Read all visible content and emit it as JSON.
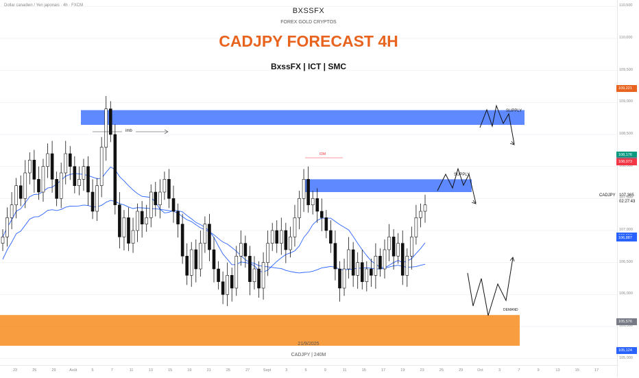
{
  "header": {
    "symbol_description": "Dollar canadien / Yen japonais · 4h · FXCM",
    "brand": "BXSSFX",
    "subtitle": "FOREX GOLD CRYPTOS",
    "title": "CADJPY FORECAST 4H",
    "tagline": "BxssFX | ICT | SMC"
  },
  "watermark": {
    "date": "21/9/2025",
    "symbol": "CADJPY | 240M"
  },
  "current": {
    "name": "CADJPY",
    "price": "107,365",
    "countdown": "02:27:43"
  },
  "colors": {
    "supply": "#2962ff",
    "demand": "#f57c00",
    "title": "#e8641e",
    "bull": "#111111",
    "ma": "#2962ff",
    "idm": "#f23645"
  },
  "chart_data": {
    "type": "candlestick",
    "ylim": [
      104.9,
      110.6
    ],
    "y_ticks": [
      "110,500",
      "110,000",
      "109,500",
      "109,000",
      "108,500",
      "108,000",
      "107,500",
      "107,000",
      "106,500",
      "106,000",
      "105,500",
      "105,000"
    ],
    "x_ticks": [
      "23",
      "25",
      "29",
      "Août",
      "5",
      "7",
      "11",
      "13",
      "15",
      "19",
      "21",
      "25",
      "27",
      "Sept",
      "3",
      "5",
      "9",
      "11",
      "15",
      "17",
      "19",
      "23",
      "25",
      "29",
      "Oct",
      "3",
      "7",
      "9",
      "13",
      "15",
      "17"
    ],
    "price_tags": [
      {
        "label": "109,221",
        "color": "#e8641e"
      },
      {
        "label": "108,176",
        "color": "#089981"
      },
      {
        "label": "108,090",
        "color": "#787b86"
      },
      {
        "label": "108,073",
        "color": "#f23645"
      },
      {
        "label": "106,913",
        "color": "#2962ff"
      },
      {
        "label": "106,887",
        "color": "#2962ff"
      },
      {
        "label": "105,576",
        "color": "#787b86"
      },
      {
        "label": "105,124",
        "color": "#2962ff"
      }
    ],
    "zones": [
      {
        "kind": "supply",
        "label": "SUPPLY",
        "from": 108.65,
        "to": 108.88
      },
      {
        "kind": "supply",
        "label": "SUPPLY",
        "from": 107.6,
        "to": 107.8
      },
      {
        "kind": "demand",
        "label": "DEMAND",
        "from": 105.2,
        "to": 105.68
      }
    ],
    "annotations": [
      "imb",
      "IDM"
    ],
    "closes": [
      106.9,
      107.2,
      107.4,
      107.7,
      107.5,
      107.9,
      108.1,
      107.8,
      107.6,
      108.0,
      108.2,
      107.8,
      107.5,
      107.9,
      108.2,
      108.0,
      107.7,
      107.8,
      108.0,
      107.6,
      107.3,
      107.7,
      108.3,
      108.9,
      108.5,
      107.4,
      106.9,
      107.2,
      106.8,
      107.0,
      107.3,
      107.1,
      107.2,
      107.6,
      107.4,
      107.6,
      107.8,
      107.5,
      107.3,
      107.1,
      106.6,
      106.3,
      106.7,
      106.4,
      106.8,
      107.1,
      106.7,
      106.4,
      106.2,
      106.0,
      106.3,
      106.1,
      106.6,
      106.8,
      106.6,
      106.2,
      106.4,
      106.1,
      106.5,
      106.8,
      107.0,
      106.8,
      107.0,
      106.7,
      106.9,
      107.2,
      107.5,
      107.8,
      107.4,
      107.5,
      107.3,
      107.2,
      107.0,
      106.8,
      106.4,
      106.1,
      106.4,
      106.7,
      106.3,
      106.5,
      106.2,
      106.4,
      106.3,
      106.6,
      106.4,
      106.7,
      106.9,
      106.6,
      106.8,
      106.3,
      106.6,
      106.9,
      107.2,
      107.3,
      107.4
    ]
  }
}
